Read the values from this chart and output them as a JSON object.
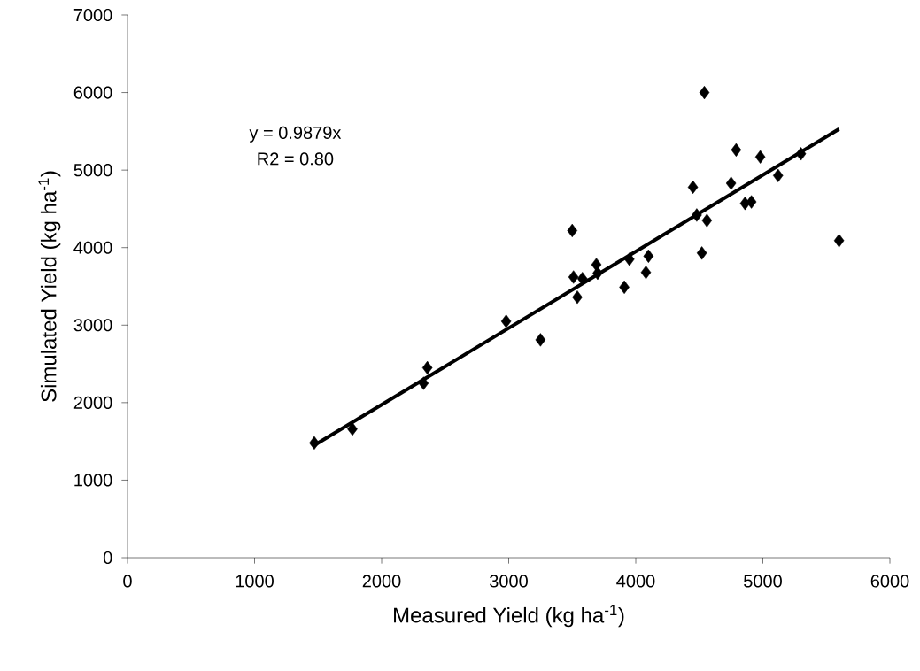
{
  "chart_data": {
    "type": "scatter",
    "xlabel": "Measured Yield (kg ha$^{-1}$)",
    "ylabel": "Simulated Yield (kg ha$^{-1}$)",
    "annotations": [
      "y = 0.9879x",
      "R2 = 0.80"
    ],
    "xlim": [
      0,
      6000
    ],
    "xticks": [
      0,
      1000,
      2000,
      3000,
      4000,
      5000,
      6000
    ],
    "ylim": [
      0,
      7000
    ],
    "yticks": [
      0,
      1000,
      2000,
      3000,
      4000,
      5000,
      6000,
      7000
    ],
    "grid": false,
    "marker": "diamond",
    "series": [
      {
        "color": "#000000",
        "x": [
          1470,
          1770,
          2360,
          2330,
          2980,
          3250,
          3500,
          3510,
          3580,
          3540,
          3690,
          3700,
          3910,
          3950,
          4080,
          4100,
          4450,
          4480,
          4520,
          4540,
          4560,
          4750,
          4790,
          4860,
          4910,
          4980,
          5120,
          5300,
          5600
        ],
        "values": [
          1480,
          1660,
          2450,
          2250,
          3050,
          2810,
          4220,
          3620,
          3600,
          3360,
          3780,
          3670,
          3490,
          3850,
          3680,
          3890,
          4780,
          4420,
          3930,
          6000,
          4350,
          4830,
          5260,
          4570,
          4590,
          5170,
          4930,
          5210,
          4090
        ]
      },
      {
        "type": "line",
        "color": "#000000",
        "marker": "none",
        "x": [
          1470,
          5600
        ],
        "values": [
          1450,
          5530
        ]
      }
    ]
  }
}
